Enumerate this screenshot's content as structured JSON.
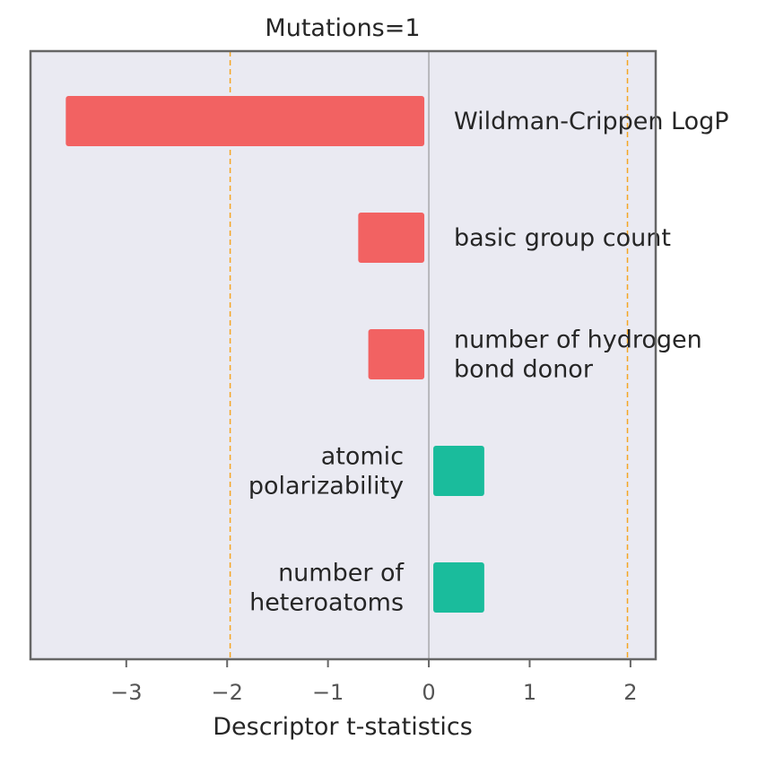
{
  "chart_data": {
    "type": "bar",
    "orientation": "horizontal",
    "title": "Mutations=1",
    "xlabel": "Descriptor t-statistics",
    "ylabel": "",
    "xlim": [
      -3.95,
      2.25
    ],
    "xticks": [
      -3,
      -2,
      -1,
      0,
      1,
      2
    ],
    "xtick_labels": [
      "−3",
      "−2",
      "−1",
      "0",
      "1",
      "2"
    ],
    "reference_lines": [
      -1.97,
      1.97
    ],
    "grid": false,
    "categories": [
      [
        "Wildman-Crippen LogP"
      ],
      [
        "basic group count"
      ],
      [
        "number of hydrogen",
        "bond donor"
      ],
      [
        "atomic",
        "polarizability"
      ],
      [
        "number of",
        "heteroatoms"
      ]
    ],
    "values": [
      -3.6,
      -0.7,
      -0.6,
      0.55,
      0.55
    ],
    "colors": {
      "negative": "#f26262",
      "positive": "#1abc9c",
      "reference_line": "#f5a623",
      "plot_background": "#eaeaf2",
      "frame": "#666666",
      "zero_line": "#999999"
    }
  }
}
